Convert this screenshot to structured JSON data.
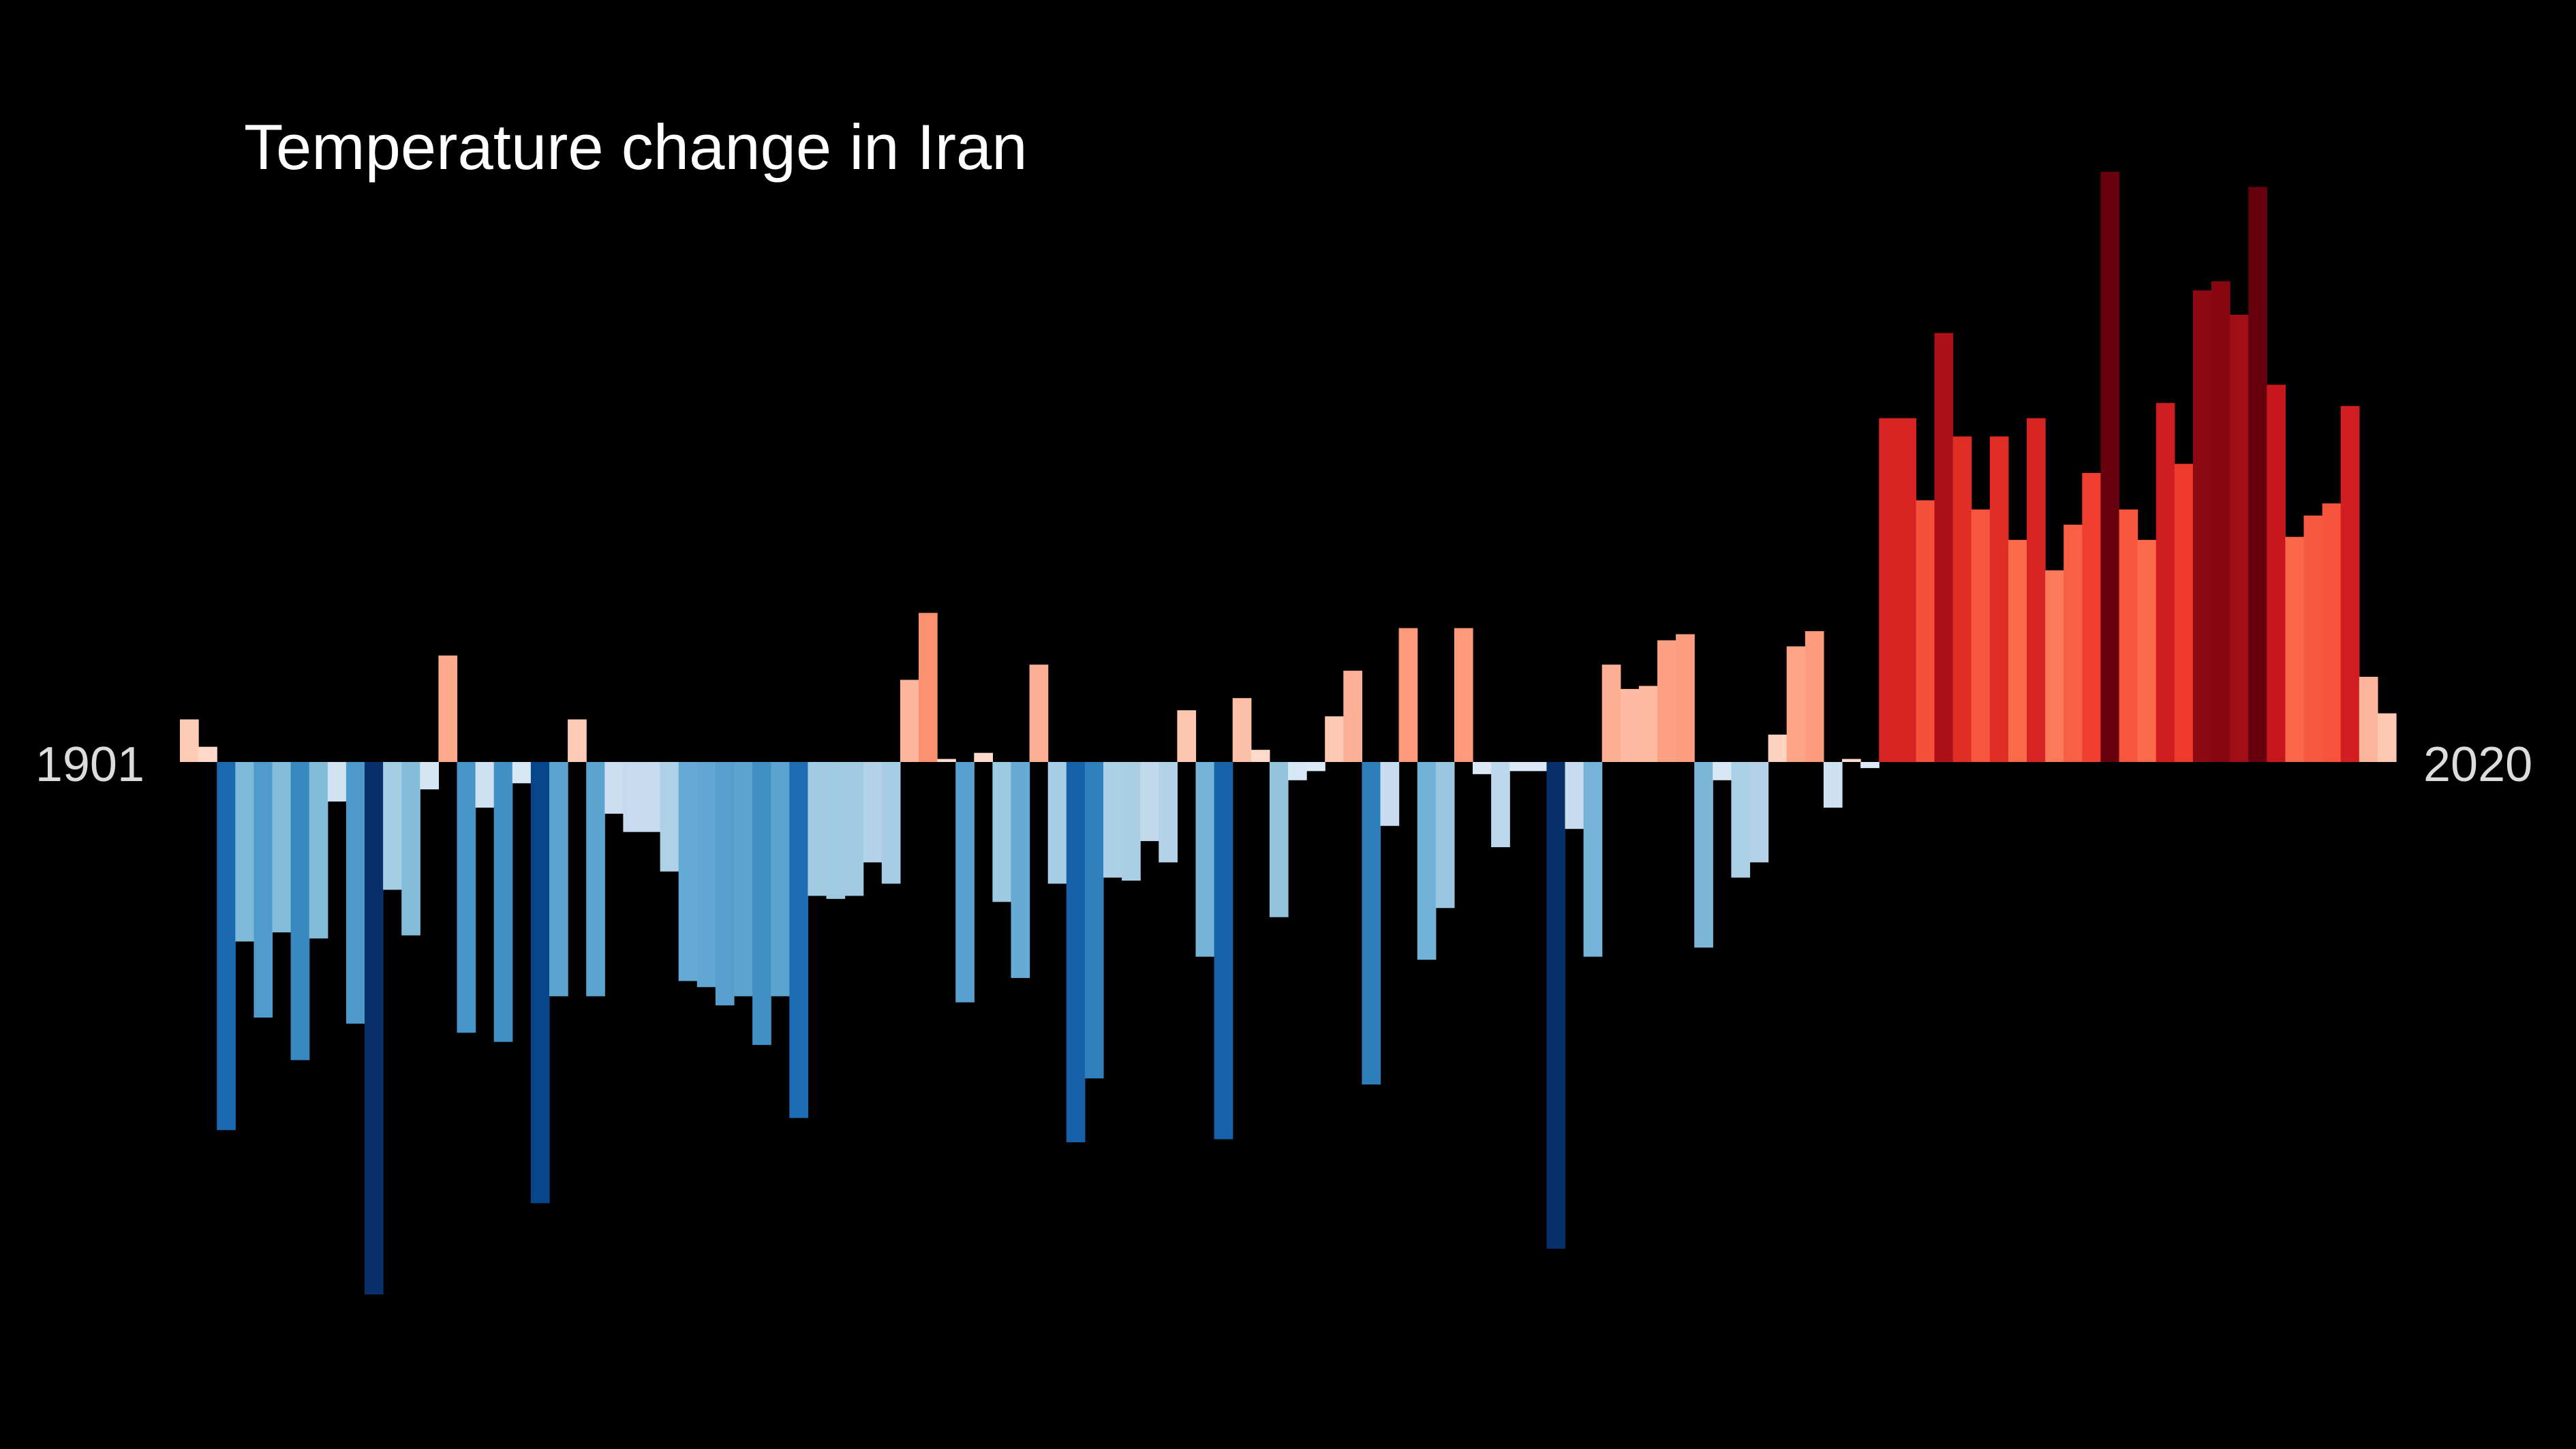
{
  "chart_data": {
    "type": "bar",
    "title": "Temperature change in Iran",
    "xlabel": "",
    "ylabel": "",
    "start_year": "1901",
    "end_year": "2020",
    "ylim": [
      -1.75,
      2.0
    ],
    "grid": false,
    "legend": "none",
    "colors": {
      "background": "#000000",
      "title": "#ffffff",
      "year_labels": "#dcdcdc"
    },
    "x": [
      1901,
      1902,
      1903,
      1904,
      1905,
      1906,
      1907,
      1908,
      1909,
      1910,
      1911,
      1912,
      1913,
      1914,
      1915,
      1916,
      1917,
      1918,
      1919,
      1920,
      1921,
      1922,
      1923,
      1924,
      1925,
      1926,
      1927,
      1928,
      1929,
      1930,
      1931,
      1932,
      1933,
      1934,
      1935,
      1936,
      1937,
      1938,
      1939,
      1940,
      1941,
      1942,
      1943,
      1944,
      1945,
      1946,
      1947,
      1948,
      1949,
      1950,
      1951,
      1952,
      1953,
      1954,
      1955,
      1956,
      1957,
      1958,
      1959,
      1960,
      1961,
      1962,
      1963,
      1964,
      1965,
      1966,
      1967,
      1968,
      1969,
      1970,
      1971,
      1972,
      1973,
      1974,
      1975,
      1976,
      1977,
      1978,
      1979,
      1980,
      1981,
      1982,
      1983,
      1984,
      1985,
      1986,
      1987,
      1988,
      1989,
      1990,
      1991,
      1992,
      1993,
      1994,
      1995,
      1996,
      1997,
      1998,
      1999,
      2000,
      2001,
      2002,
      2003,
      2004,
      2005,
      2006,
      2007,
      2008,
      2009,
      2010,
      2011,
      2012,
      2013,
      2014,
      2015,
      2016,
      2017,
      2018,
      2019,
      2020
    ],
    "values": [
      0.14,
      0.05,
      -1.21,
      -0.59,
      -0.84,
      -0.56,
      -0.98,
      -0.58,
      -0.13,
      -0.86,
      -1.75,
      -0.42,
      -0.57,
      -0.09,
      0.35,
      -0.89,
      -0.15,
      -0.92,
      -0.07,
      -1.45,
      -0.77,
      0.14,
      -0.77,
      -0.17,
      -0.23,
      -0.23,
      -0.36,
      -0.72,
      -0.74,
      -0.8,
      -0.77,
      -0.93,
      -0.77,
      -1.17,
      -0.44,
      -0.45,
      -0.44,
      -0.33,
      -0.4,
      0.27,
      0.49,
      0.01,
      -0.79,
      0.03,
      -0.46,
      -0.71,
      0.32,
      -0.4,
      -1.25,
      -1.04,
      -0.38,
      -0.39,
      -0.26,
      -0.33,
      0.17,
      -0.64,
      -1.24,
      0.21,
      0.04,
      -0.51,
      -0.06,
      -0.03,
      0.15,
      0.3,
      -1.06,
      -0.21,
      0.44,
      -0.65,
      -0.48,
      0.44,
      -0.04,
      -0.28,
      -0.03,
      -0.03,
      -1.6,
      -0.22,
      -0.64,
      0.32,
      0.24,
      0.25,
      0.4,
      0.42,
      -0.61,
      -0.06,
      -0.38,
      -0.33,
      0.09,
      0.38,
      0.43,
      -0.15,
      0.01,
      -0.02,
      1.13,
      1.13,
      0.86,
      1.41,
      1.07,
      0.83,
      1.07,
      0.73,
      1.13,
      0.63,
      0.78,
      0.95,
      1.94,
      0.83,
      0.73,
      1.18,
      0.98,
      1.55,
      1.58,
      1.47,
      1.89,
      1.24,
      0.74,
      0.81,
      0.85,
      1.17,
      0.28,
      0.16
    ]
  }
}
